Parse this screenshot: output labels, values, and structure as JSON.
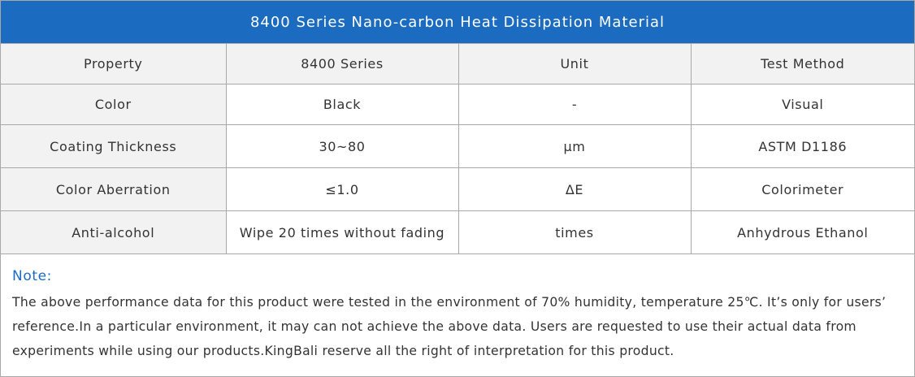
{
  "title": "8400 Series Nano-carbon Heat Dissipation Material",
  "table": {
    "header": [
      "Property",
      "8400 Series",
      "Unit",
      "Test Method"
    ],
    "rows": [
      [
        "Color",
        "Black",
        "-",
        "Visual"
      ],
      [
        "Coating Thickness",
        "30~80",
        "μm",
        "ASTM D1186"
      ],
      [
        "Color Aberration",
        "≤1.0",
        "ΔE",
        "Colorimeter"
      ],
      [
        "Anti-alcohol",
        "Wipe 20 times without fading",
        "times",
        "Anhydrous Ethanol"
      ]
    ]
  },
  "note": {
    "label": "Note:",
    "text": "The above performance data for this product were tested in the environment of 70% humidity, temperature 25℃. It’s only for users’ reference.In a particular environment, it may can not achieve the above data. Users are requested to use their actual data from experiments while using our products.KingBali reserve all the right of interpretation for this product."
  }
}
